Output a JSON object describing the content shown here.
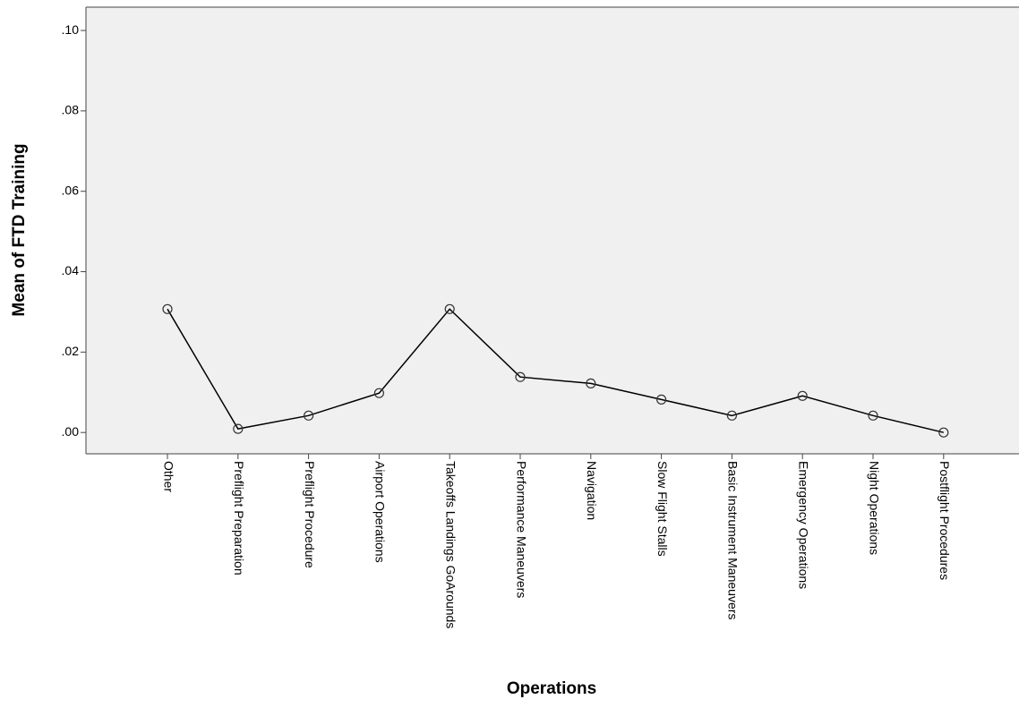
{
  "chart_data": {
    "type": "line",
    "x_label": "Operations",
    "y_label": "Mean of FTD Training",
    "categories": [
      "Other",
      "Preflight Preparation",
      "Preflight Procedure",
      "Airport Operations",
      "Takeoffs Landings GoArounds",
      "Performance Maneuvers",
      "Navigation",
      "Slow Flight Stalls",
      "Basic Instrument Maneuvers",
      "Emergency Operations",
      "Night Operations",
      "Postflight Procedures"
    ],
    "values": [
      0.0307,
      0.0009,
      0.0042,
      0.0098,
      0.0307,
      0.0138,
      0.0122,
      0.0082,
      0.0042,
      0.0091,
      0.0042,
      0.0
    ],
    "color": "#000000",
    "background": "#f0f0f0",
    "ylim": [
      -0.0053,
      0.1058
    ],
    "yticks": [
      {
        "value": 0,
        "label": ".00"
      },
      {
        "value": 0.02,
        "label": ".02"
      },
      {
        "value": 0.04,
        "label": ".04"
      },
      {
        "value": 0.06,
        "label": ".06"
      },
      {
        "value": 0.08,
        "label": ".08"
      },
      {
        "value": 0.1,
        "label": ".10"
      }
    ],
    "grid": false
  }
}
